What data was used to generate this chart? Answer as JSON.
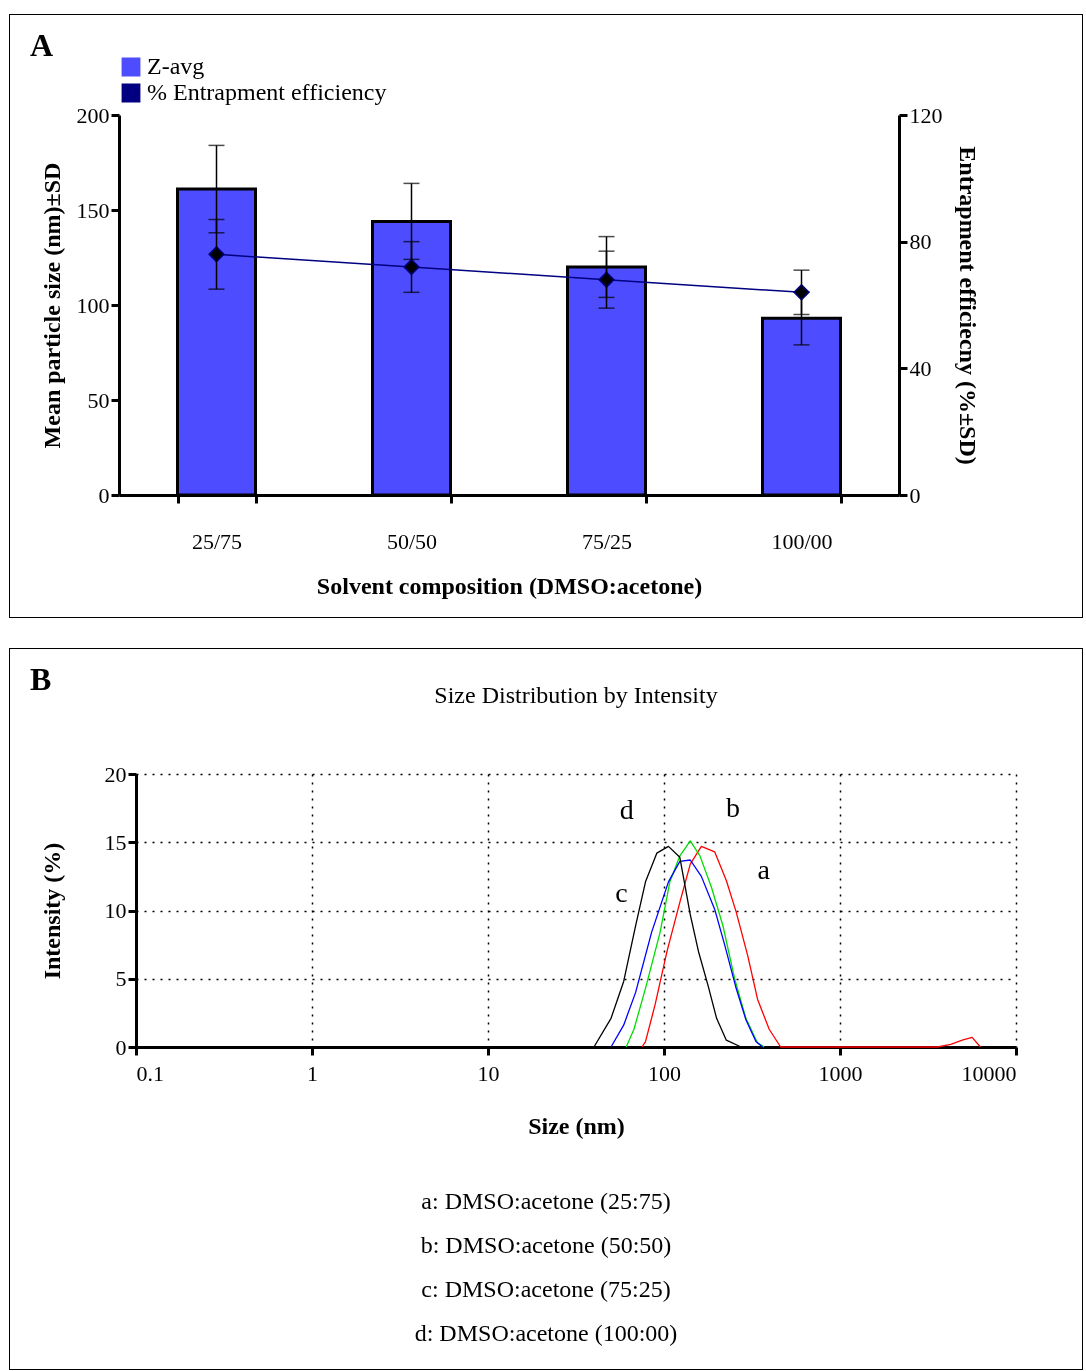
{
  "chart_data": [
    {
      "type": "bar",
      "categories": [
        "25/75",
        "50/50",
        "75/25",
        "100/00"
      ],
      "xlabel": "Solvent composition (DMSO:acetone)",
      "ylabel": "Mean particle size (nm)±SD",
      "y2label": "Entrapment efficiecny (%±SD)",
      "ylim": [
        0,
        200
      ],
      "yticks": [
        0,
        50,
        100,
        150,
        200
      ],
      "y2lim": [
        0,
        120
      ],
      "y2ticks": [
        0,
        40,
        80,
        120
      ],
      "legend": "top",
      "annotations": [
        "A"
      ],
      "series": [
        {
          "name": "Z-avg",
          "type": "bar",
          "color": "#4d4dff",
          "values": [
            161,
            144,
            120,
            93
          ],
          "errors": [
            23,
            20,
            16,
            14
          ]
        },
        {
          "name": "% Entrapment efficiency",
          "type": "line",
          "axis": "y2",
          "color": "#000080",
          "marker": "diamond",
          "values": [
            76,
            72,
            68,
            64
          ],
          "errors": [
            11,
            8,
            9,
            7
          ]
        }
      ]
    },
    {
      "type": "line",
      "title": "Size Distribution by Intensity",
      "xlabel": "Size (nm)",
      "ylabel": "Intensity (%)",
      "log": "x",
      "xlim": [
        0.1,
        10000
      ],
      "xticks": [
        0.1,
        1,
        10,
        100,
        1000,
        10000
      ],
      "ylim": [
        0,
        20
      ],
      "yticks": [
        0,
        5,
        10,
        15,
        20
      ],
      "grid": true,
      "annotations": [
        "B",
        {
          "text": "a",
          "x": 236,
          "y": 10.7
        },
        {
          "text": "b",
          "x": 150,
          "y": 14.8
        },
        {
          "text": "c",
          "x": 85,
          "y": 8.4
        },
        {
          "text": "d",
          "x": 91,
          "y": 14.2
        },
        "a: DMSO:acetone (25:75)",
        "b: DMSO:acetone (50:50)",
        "c: DMSO:acetone (75:25)",
        "d: DMSO:acetone (100:00)"
      ],
      "series": [
        {
          "color": "#ff0000",
          "x": [
            75,
            78.5,
            89,
            104,
            123,
            141,
            163,
            194,
            226,
            257,
            299,
            340,
            396,
            460,
            3580,
            4260,
            4950,
            5630,
            6280
          ],
          "values": [
            0,
            0.4,
            3.1,
            7.0,
            10.6,
            13.4,
            14.7,
            14.3,
            12.2,
            9.9,
            6.7,
            3.5,
            1.3,
            0,
            0,
            0.2,
            0.5,
            0.7,
            0
          ]
        },
        {
          "color": "#00dd00",
          "x": [
            61,
            67.5,
            78.5,
            95,
            108,
            123,
            141,
            160,
            186,
            216,
            252,
            292,
            340,
            371
          ],
          "values": [
            0,
            1.3,
            4.3,
            8.4,
            12.1,
            14.0,
            15.1,
            14.0,
            11.7,
            8.9,
            5.0,
            2.1,
            0.3,
            0
          ]
        },
        {
          "color": "#0000ff",
          "x": [
            50,
            59,
            69,
            85,
            106,
            123,
            141,
            163,
            194,
            221,
            257,
            292,
            333,
            363
          ],
          "values": [
            0,
            1.6,
            4.0,
            8.4,
            12.1,
            13.6,
            13.7,
            12.5,
            10.1,
            7.5,
            4.3,
            2.0,
            0.4,
            0
          ]
        },
        {
          "color": "#000000",
          "x": [
            40,
            50,
            59,
            69,
            78.5,
            91,
            106,
            123,
            141,
            157,
            178,
            199,
            226,
            274
          ],
          "values": [
            0,
            2.1,
            4.8,
            8.9,
            12.1,
            14.2,
            14.7,
            13.9,
            9.7,
            7.0,
            4.5,
            2.1,
            0.5,
            0
          ]
        }
      ]
    }
  ]
}
